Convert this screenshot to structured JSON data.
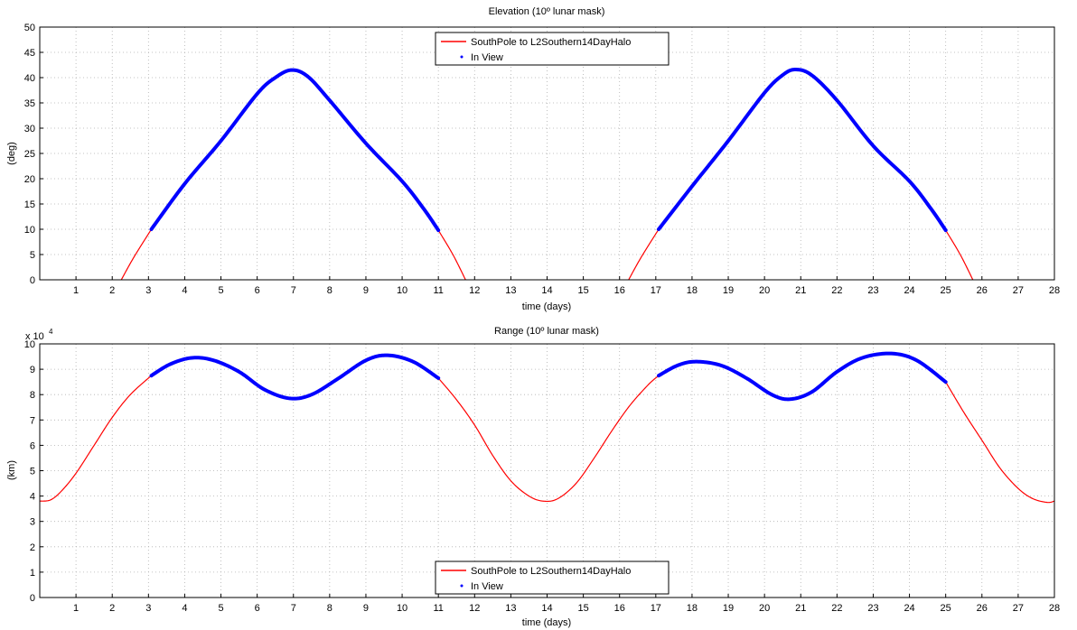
{
  "chart_data": [
    {
      "type": "line",
      "title": "Elevation (10º lunar mask)",
      "xlabel": "time (days)",
      "ylabel": "(deg)",
      "xlim": [
        0,
        28
      ],
      "ylim": [
        0,
        50
      ],
      "xticks": [
        1,
        2,
        3,
        4,
        5,
        6,
        7,
        8,
        9,
        10,
        11,
        12,
        13,
        14,
        15,
        16,
        17,
        18,
        19,
        20,
        21,
        22,
        23,
        24,
        25,
        26,
        27,
        28
      ],
      "yticks": [
        0,
        5,
        10,
        15,
        20,
        25,
        30,
        35,
        40,
        45,
        50
      ],
      "grid": true,
      "legend_position": "top-center",
      "series": [
        {
          "name": "SouthPole to L2Southern14DayHalo",
          "style": "line",
          "color": "#ff0000",
          "segments": [
            {
              "x": [
                2.25,
                2.6,
                3.08
              ],
              "y": [
                0,
                4.5,
                10
              ]
            },
            {
              "x": [
                3.08,
                4.0,
                5.0,
                6.0,
                6.5,
                6.95,
                7.4,
                8.0,
                9.0,
                10.0,
                10.6,
                11.0
              ],
              "y": [
                10,
                19,
                27.5,
                36.8,
                40,
                41.5,
                40.2,
                35.5,
                27,
                19.5,
                14,
                9.8
              ]
            },
            {
              "x": [
                11.0,
                11.4,
                11.75
              ],
              "y": [
                9.8,
                5,
                0
              ]
            },
            {
              "x": [
                16.25,
                16.6,
                17.08
              ],
              "y": [
                0,
                4.5,
                10
              ]
            },
            {
              "x": [
                17.08,
                18.0,
                19.0,
                20.0,
                20.5,
                20.85,
                21.3,
                22.0,
                23.0,
                24.0,
                24.6,
                25.0
              ],
              "y": [
                10,
                18.5,
                27.5,
                37,
                40.5,
                41.6,
                40.5,
                35.5,
                26.5,
                19.5,
                14,
                9.8
              ]
            },
            {
              "x": [
                25.0,
                25.4,
                25.75
              ],
              "y": [
                9.8,
                5,
                0
              ]
            }
          ]
        },
        {
          "name": "In View",
          "style": "markers",
          "color": "#0000ff",
          "segments": [
            {
              "x": [
                3.08,
                4.0,
                5.0,
                6.0,
                6.5,
                6.95,
                7.4,
                8.0,
                9.0,
                10.0,
                10.6,
                11.0
              ],
              "y": [
                10,
                19,
                27.5,
                36.8,
                40,
                41.5,
                40.2,
                35.5,
                27,
                19.5,
                14,
                9.8
              ]
            },
            {
              "x": [
                17.08,
                18.0,
                19.0,
                20.0,
                20.5,
                20.85,
                21.3,
                22.0,
                23.0,
                24.0,
                24.6,
                25.0
              ],
              "y": [
                10,
                18.5,
                27.5,
                37,
                40.5,
                41.6,
                40.5,
                35.5,
                26.5,
                19.5,
                14,
                9.8
              ]
            }
          ]
        }
      ]
    },
    {
      "type": "line",
      "title": "Range (10º lunar mask)",
      "xlabel": "time (days)",
      "ylabel": "(km)",
      "y_exponent_label": "x 10",
      "y_exponent_power": "4",
      "xlim": [
        0,
        28
      ],
      "ylim": [
        0,
        10
      ],
      "xticks": [
        1,
        2,
        3,
        4,
        5,
        6,
        7,
        8,
        9,
        10,
        11,
        12,
        13,
        14,
        15,
        16,
        17,
        18,
        19,
        20,
        21,
        22,
        23,
        24,
        25,
        26,
        27,
        28
      ],
      "yticks": [
        0,
        1,
        2,
        3,
        4,
        5,
        6,
        7,
        8,
        9,
        10
      ],
      "grid": true,
      "legend_position": "bottom-center",
      "series": [
        {
          "name": "SouthPole to L2Southern14DayHalo",
          "style": "line",
          "color": "#ff0000",
          "segments": [
            {
              "x": [
                0,
                0.3,
                0.6,
                1.0,
                1.5,
                2.0,
                2.5,
                3.08
              ],
              "y": [
                3.8,
                3.85,
                4.2,
                4.9,
                6.0,
                7.1,
                8.0,
                8.75
              ]
            },
            {
              "x": [
                3.08,
                3.6,
                4.2,
                4.8,
                5.5,
                6.2,
                6.9,
                7.5,
                8.2,
                9.0,
                9.6,
                10.3,
                11.0
              ],
              "y": [
                8.75,
                9.2,
                9.45,
                9.35,
                8.9,
                8.2,
                7.85,
                8.0,
                8.6,
                9.35,
                9.55,
                9.3,
                8.65
              ]
            },
            {
              "x": [
                11.0,
                11.5,
                12.0,
                12.5,
                13.0,
                13.5,
                13.9,
                14.3,
                14.8,
                15.3,
                15.8,
                16.3,
                16.8,
                17.08
              ],
              "y": [
                8.65,
                7.8,
                6.8,
                5.6,
                4.6,
                4.0,
                3.8,
                3.9,
                4.5,
                5.5,
                6.6,
                7.6,
                8.4,
                8.75
              ]
            },
            {
              "x": [
                17.08,
                17.6,
                18.1,
                18.8,
                19.5,
                20.2,
                20.7,
                21.3,
                22.0,
                22.7,
                23.5,
                24.2,
                25.0
              ],
              "y": [
                8.75,
                9.15,
                9.3,
                9.15,
                8.65,
                8.0,
                7.82,
                8.1,
                8.9,
                9.45,
                9.62,
                9.35,
                8.5
              ]
            },
            {
              "x": [
                25.0,
                25.5,
                26.0,
                26.5,
                27.0,
                27.4,
                27.8,
                28.0
              ],
              "y": [
                8.5,
                7.3,
                6.2,
                5.1,
                4.3,
                3.9,
                3.75,
                3.8
              ]
            }
          ]
        },
        {
          "name": "In View",
          "style": "markers",
          "color": "#0000ff",
          "segments": [
            {
              "x": [
                3.08,
                3.6,
                4.2,
                4.8,
                5.5,
                6.2,
                6.9,
                7.5,
                8.2,
                9.0,
                9.6,
                10.3,
                11.0
              ],
              "y": [
                8.75,
                9.2,
                9.45,
                9.35,
                8.9,
                8.2,
                7.85,
                8.0,
                8.6,
                9.35,
                9.55,
                9.3,
                8.65
              ]
            },
            {
              "x": [
                17.08,
                17.6,
                18.1,
                18.8,
                19.5,
                20.2,
                20.7,
                21.3,
                22.0,
                22.7,
                23.5,
                24.2,
                25.0
              ],
              "y": [
                8.75,
                9.15,
                9.3,
                9.15,
                8.65,
                8.0,
                7.82,
                8.1,
                8.9,
                9.45,
                9.62,
                9.35,
                8.5
              ]
            }
          ]
        }
      ]
    }
  ]
}
